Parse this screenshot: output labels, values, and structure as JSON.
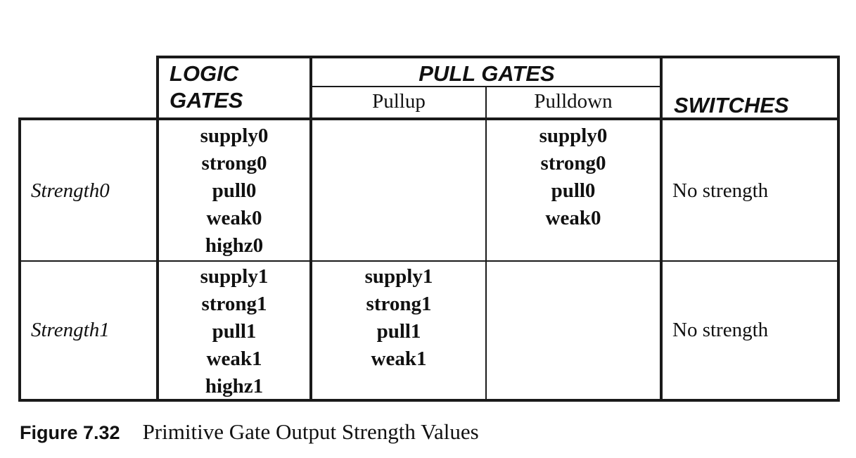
{
  "table": {
    "headers": {
      "logic_gates_line1": "LOGIC",
      "logic_gates_line2": "GATES",
      "pull_gates": "PULL GATES",
      "pullup": "Pullup",
      "pulldown": "Pulldown",
      "switches": "SWITCHES"
    },
    "rows": [
      {
        "label": "Strength0",
        "logic_gates": [
          "supply0",
          "strong0",
          "pull0",
          "weak0",
          "highz0"
        ],
        "pullup": [],
        "pulldown": [
          "supply0",
          "strong0",
          "pull0",
          "weak0"
        ],
        "switches": "No strength"
      },
      {
        "label": "Strength1",
        "logic_gates": [
          "supply1",
          "strong1",
          "pull1",
          "weak1",
          "highz1"
        ],
        "pullup": [
          "supply1",
          "strong1",
          "pull1",
          "weak1"
        ],
        "pulldown": [],
        "switches": "No strength"
      }
    ]
  },
  "caption": {
    "label": "Figure 7.32",
    "text": "Primitive Gate Output Strength Values"
  }
}
